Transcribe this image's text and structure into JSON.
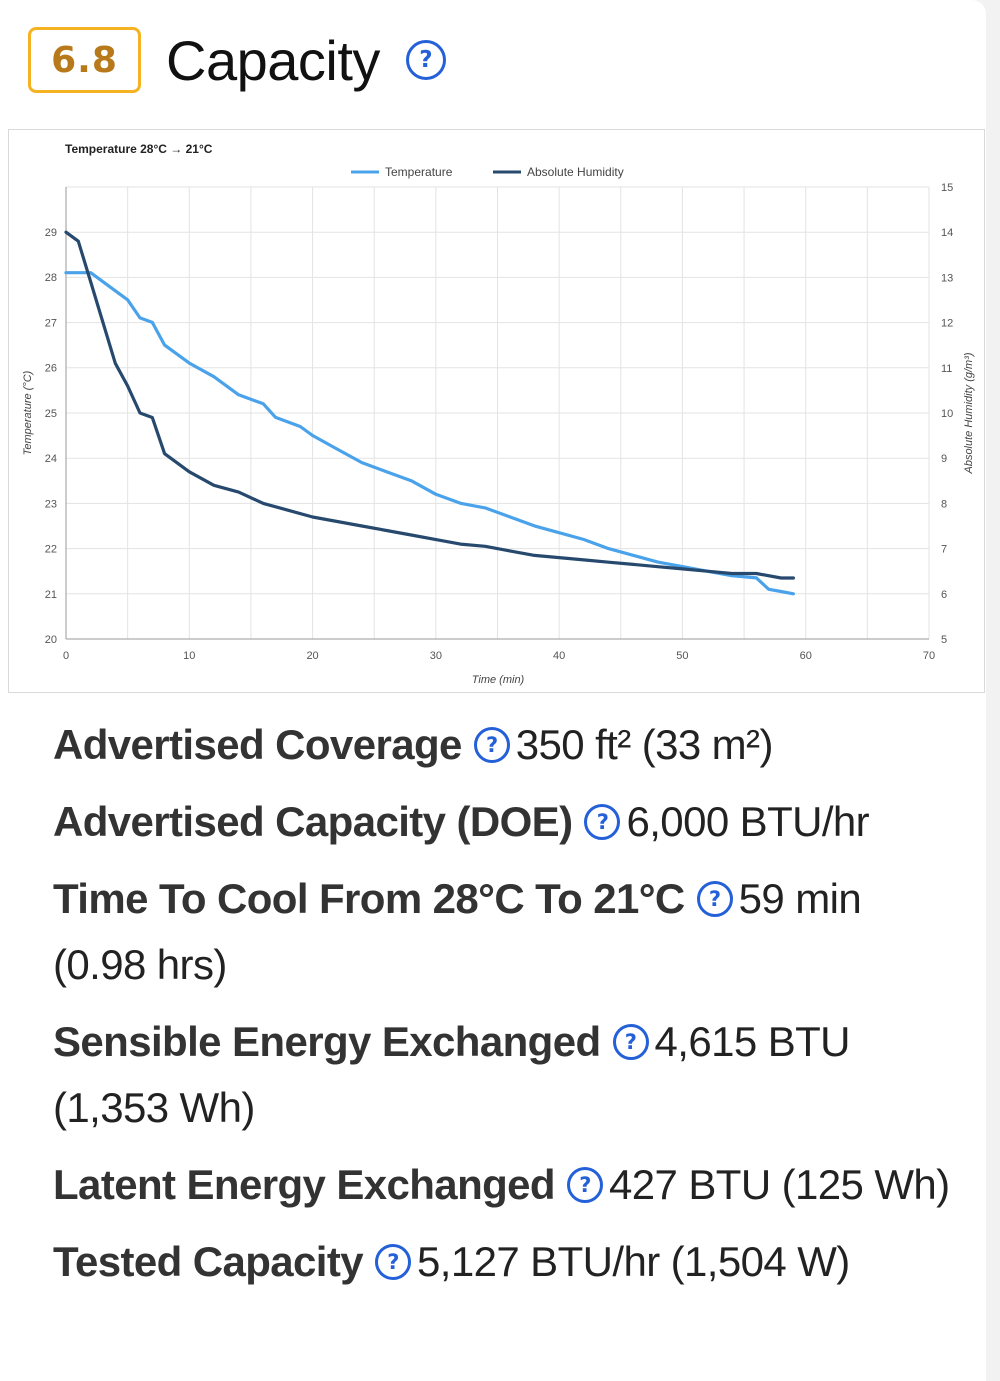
{
  "header": {
    "score": "6.8",
    "title": "Capacity",
    "help_icon": "question-circle-icon"
  },
  "colors": {
    "score_border": "#f5b324",
    "score_text": "#b8791a",
    "help": "#2460d8",
    "temperature": "#4aa3ea",
    "humidity": "#27496e"
  },
  "chart_data": {
    "type": "line",
    "title": "Temperature 28°C → 21°C",
    "xlabel": "Time (min)",
    "ylabel": "Temperature (°C)",
    "y2label": "Absolute Humidity (g/m³)",
    "xlim": [
      0,
      70
    ],
    "ylim": [
      20,
      29
    ],
    "y2lim": [
      5,
      15
    ],
    "x_ticks": [
      "0",
      "10",
      "20",
      "30",
      "40",
      "50",
      "60",
      "70"
    ],
    "y_ticks": [
      "20",
      "21",
      "22",
      "23",
      "24",
      "25",
      "26",
      "27",
      "28",
      "29"
    ],
    "y2_ticks": [
      "5",
      "6",
      "7",
      "8",
      "9",
      "10",
      "11",
      "12",
      "13",
      "14",
      "15"
    ],
    "grid": true,
    "legend": "top-center",
    "series": [
      {
        "name": "Temperature",
        "axis": "left",
        "color": "#4aa3ea",
        "x": [
          0,
          2,
          4,
          5,
          6,
          7,
          8,
          10,
          12,
          14,
          16,
          17,
          19,
          20,
          22,
          24,
          26,
          28,
          30,
          32,
          34,
          36,
          38,
          40,
          42,
          44,
          46,
          48,
          50,
          52,
          54,
          56,
          57,
          58,
          59
        ],
        "y": [
          28.1,
          28.1,
          27.7,
          27.5,
          27.1,
          27.0,
          26.5,
          26.1,
          25.8,
          25.4,
          25.2,
          24.9,
          24.7,
          24.5,
          24.2,
          23.9,
          23.7,
          23.5,
          23.2,
          23.0,
          22.9,
          22.7,
          22.5,
          22.35,
          22.2,
          22.0,
          21.85,
          21.7,
          21.6,
          21.5,
          21.4,
          21.35,
          21.1,
          21.05,
          21.0
        ]
      },
      {
        "name": "Absolute Humidity",
        "axis": "right",
        "color": "#27496e",
        "x": [
          0,
          1,
          2,
          3,
          4,
          5,
          6,
          7,
          8,
          10,
          12,
          14,
          16,
          18,
          20,
          22,
          24,
          26,
          28,
          30,
          32,
          34,
          36,
          38,
          40,
          42,
          44,
          46,
          48,
          50,
          52,
          54,
          56,
          58,
          59
        ],
        "y": [
          14.0,
          13.8,
          12.9,
          12.0,
          11.1,
          10.6,
          10.0,
          9.9,
          9.1,
          8.7,
          8.4,
          8.25,
          8.0,
          7.85,
          7.7,
          7.6,
          7.5,
          7.4,
          7.3,
          7.2,
          7.1,
          7.05,
          6.95,
          6.85,
          6.8,
          6.75,
          6.7,
          6.65,
          6.6,
          6.55,
          6.5,
          6.45,
          6.45,
          6.35,
          6.35
        ]
      }
    ]
  },
  "specs": [
    {
      "label": "Advertised Coverage",
      "value": "350 ft² (33 m²)"
    },
    {
      "label": "Advertised Capacity (DOE)",
      "value": "6,000 BTU/hr"
    },
    {
      "label": "Time To Cool From 28°C To 21°C",
      "value": "59 min (0.98 hrs)"
    },
    {
      "label": "Sensible Energy Exchanged",
      "value": "4,615 BTU (1,353 Wh)"
    },
    {
      "label": "Latent Energy Exchanged",
      "value": "427 BTU (125 Wh)"
    },
    {
      "label": "Tested Capacity",
      "value": "5,127 BTU/hr (1,504 W)"
    }
  ],
  "help_symbol": "?"
}
